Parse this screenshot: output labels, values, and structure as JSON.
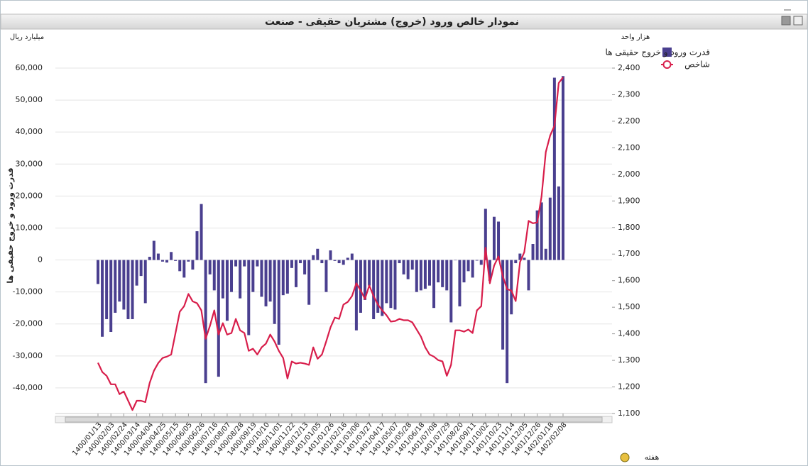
{
  "chart_data": {
    "type": "bar",
    "title": "نمودار خالص ورود (خروج) مشتریان حقیقی - صنعت",
    "y_unit": "میلیارد ریال",
    "y2_unit": "هزار واحد",
    "y_label": "قدرت ورود و خروج حقیقی ها",
    "x_label": "هفته",
    "legend": "top-right",
    "grid": true,
    "categories": [
      "1400/01/13",
      null,
      null,
      "1400/02/03",
      null,
      null,
      "1400/02/24",
      null,
      null,
      "1400/03/14",
      null,
      null,
      "1400/04/04",
      null,
      null,
      "1400/04/25",
      null,
      null,
      "1400/05/15",
      null,
      null,
      "1400/06/05",
      null,
      null,
      "1400/06/26",
      null,
      null,
      "1400/07/16",
      null,
      null,
      "1400/08/07",
      null,
      null,
      "1400/08/28",
      null,
      null,
      "1400/09/19",
      null,
      null,
      "1400/10/10",
      null,
      null,
      "1400/11/01",
      null,
      null,
      "1400/11/22",
      null,
      null,
      "1400/12/13",
      null,
      null,
      "1401/01/05",
      null,
      null,
      "1401/01/26",
      null,
      null,
      "1401/02/16",
      null,
      null,
      "1401/03/06",
      null,
      null,
      "1401/03/27",
      null,
      null,
      "1401/04/17",
      null,
      null,
      "1401/05/07",
      null,
      null,
      "1401/05/28",
      null,
      null,
      "1401/06/18",
      null,
      null,
      "1401/07/08",
      null,
      null,
      "1401/07/29",
      null,
      null,
      "1401/08/20",
      null,
      null,
      "1401/09/11",
      null,
      null,
      "1401/10/02",
      null,
      null,
      "1401/10/23",
      null,
      null,
      "1401/11/14",
      null,
      null,
      "1401/12/05",
      null,
      null,
      "1401/12/26",
      null,
      null,
      "1402/01/18",
      null,
      null,
      "1402/02/08"
    ],
    "series": [
      {
        "name": "قدرت ورود و خروج حقیقی ها",
        "type": "bar",
        "color": "#4a3f8f",
        "values": [
          -7500,
          -24000,
          -18500,
          -22500,
          -16500,
          -13000,
          -15500,
          -18500,
          -18500,
          -8000,
          -5000,
          -13500,
          1000,
          6000,
          2000,
          -500,
          -800,
          2500,
          -300,
          -3500,
          -5500,
          -500,
          -3000,
          9000,
          17500,
          -38500,
          -4500,
          -9500,
          -36500,
          -12000,
          -19000,
          -10000,
          -2000,
          -12000,
          -2000,
          -23500,
          -10000,
          -2000,
          -11500,
          -14500,
          -13000,
          -20000,
          -26500,
          -11000,
          -10500,
          -2500,
          -8500,
          -1000,
          -4500,
          -14000,
          1500,
          3500,
          -1000,
          -10000,
          3000,
          -300,
          -1000,
          -1500,
          700,
          2000,
          -22000,
          -16500,
          -12500,
          -8000,
          -18500,
          -16500,
          -17500,
          -13500,
          -15000,
          -15500,
          -1000,
          -4500,
          -6000,
          -3000,
          -10000,
          -9500,
          -9000,
          -8000,
          -15000,
          -7000,
          -8500,
          -9500,
          -19500,
          0,
          -14500,
          -7000,
          -3500,
          -5500,
          -200,
          -1500,
          16000,
          -6500,
          13500,
          12000,
          -28000,
          -38500,
          -17000,
          -1000,
          2000,
          700,
          -9500,
          5000,
          15500,
          18000,
          3500,
          19500,
          57000,
          23000,
          57500
        ]
      },
      {
        "name": "شاخص",
        "type": "line",
        "axis": "y2",
        "color": "#d81e4b",
        "values": [
          1291,
          1256,
          1242,
          1210,
          1210,
          1173,
          1183,
          1148,
          1113,
          1148,
          1148,
          1143,
          1215,
          1261,
          1290,
          1309,
          1314,
          1322,
          1403,
          1483,
          1504,
          1550,
          1522,
          1515,
          1488,
          1381,
          1430,
          1488,
          1397,
          1440,
          1397,
          1403,
          1456,
          1413,
          1403,
          1336,
          1344,
          1322,
          1349,
          1363,
          1397,
          1371,
          1336,
          1309,
          1232,
          1296,
          1288,
          1291,
          1288,
          1283,
          1349,
          1306,
          1322,
          1371,
          1424,
          1461,
          1456,
          1510,
          1520,
          1542,
          1590,
          1563,
          1531,
          1582,
          1542,
          1510,
          1488,
          1470,
          1446,
          1448,
          1456,
          1451,
          1451,
          1443,
          1416,
          1389,
          1349,
          1322,
          1314,
          1301,
          1296,
          1242,
          1283,
          1413,
          1413,
          1408,
          1416,
          1403,
          1488,
          1504,
          1724,
          1590,
          1657,
          1691,
          1617,
          1568,
          1563,
          1523,
          1670,
          1707,
          1825,
          1816,
          1819,
          1916,
          2084,
          2146,
          2183,
          2344,
          2365
        ]
      }
    ],
    "ylim": [
      -48000,
      60000
    ],
    "yticks": [
      {
        "value": -40000,
        "label": "-40,000"
      },
      {
        "value": -30000,
        "label": "-30,000"
      },
      {
        "value": -20000,
        "label": "-20,000"
      },
      {
        "value": -10000,
        "label": "-10,000"
      },
      0,
      {
        "value": 10000,
        "label": "10,000"
      },
      {
        "value": 20000,
        "label": "20,000"
      },
      {
        "value": 30000,
        "label": "30,000"
      },
      {
        "value": 40000,
        "label": "40,000"
      },
      {
        "value": 50000,
        "label": "50,000"
      },
      {
        "value": 60000,
        "label": "60,000"
      }
    ],
    "y2lim": [
      1100,
      2400
    ],
    "y2ticks": [
      {
        "value": 1100,
        "label": "1,100"
      },
      {
        "value": 1200,
        "label": "1,200"
      },
      {
        "value": 1300,
        "label": "1,300"
      },
      {
        "value": 1400,
        "label": "1,400"
      },
      {
        "value": 1500,
        "label": "1,500"
      },
      {
        "value": 1600,
        "label": "1,600"
      },
      {
        "value": 1700,
        "label": "1,700"
      },
      {
        "value": 1800,
        "label": "1,800"
      },
      {
        "value": 1900,
        "label": "1,900"
      },
      {
        "value": 2000,
        "label": "2,000"
      },
      {
        "value": 2100,
        "label": "2,100"
      },
      {
        "value": 2200,
        "label": "2,200"
      },
      {
        "value": 2300,
        "label": "2,300"
      },
      {
        "value": 2400,
        "label": "2,400"
      }
    ]
  }
}
